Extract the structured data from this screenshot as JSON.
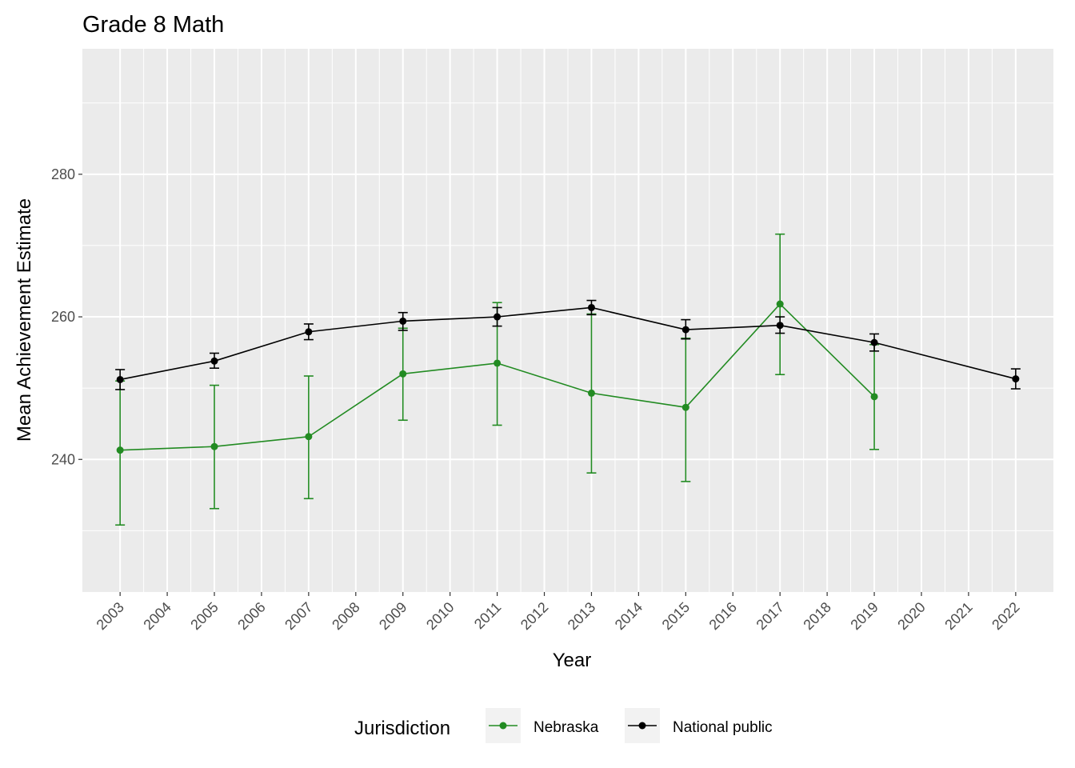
{
  "chart_data": {
    "type": "line",
    "title": "Grade 8 Math",
    "xlabel": "Year",
    "ylabel": "Mean Achievement Estimate",
    "x_categories": [
      "2003",
      "2004",
      "2005",
      "2006",
      "2007",
      "2008",
      "2009",
      "2010",
      "2011",
      "2012",
      "2013",
      "2014",
      "2015",
      "2016",
      "2017",
      "2018",
      "2019",
      "2020",
      "2021",
      "2022"
    ],
    "y_ticks": [
      240,
      260,
      280
    ],
    "ylim": [
      221.4,
      297.6
    ],
    "grid": true,
    "error_bars": true,
    "legend": {
      "title": "Jurisdiction",
      "position": "bottom"
    },
    "series": [
      {
        "name": "Nebraska",
        "color": "#228B22",
        "points": [
          {
            "x": "2003",
            "y": 241.3,
            "lo": 230.8,
            "hi": 251.0
          },
          {
            "x": "2005",
            "y": 241.8,
            "lo": 233.1,
            "hi": 250.4
          },
          {
            "x": "2007",
            "y": 243.2,
            "lo": 234.5,
            "hi": 251.7
          },
          {
            "x": "2009",
            "y": 252.0,
            "lo": 245.5,
            "hi": 258.4
          },
          {
            "x": "2011",
            "y": 253.5,
            "lo": 244.8,
            "hi": 262.0
          },
          {
            "x": "2013",
            "y": 249.3,
            "lo": 238.1,
            "hi": 260.4
          },
          {
            "x": "2015",
            "y": 247.3,
            "lo": 236.9,
            "hi": 257.0
          },
          {
            "x": "2017",
            "y": 261.8,
            "lo": 251.9,
            "hi": 271.6
          },
          {
            "x": "2019",
            "y": 248.8,
            "lo": 241.4,
            "hi": 256.1
          }
        ]
      },
      {
        "name": "National public",
        "color": "#000000",
        "points": [
          {
            "x": "2003",
            "y": 251.2,
            "lo": 249.8,
            "hi": 252.6
          },
          {
            "x": "2005",
            "y": 253.8,
            "lo": 252.8,
            "hi": 254.9
          },
          {
            "x": "2007",
            "y": 257.9,
            "lo": 256.8,
            "hi": 259.0
          },
          {
            "x": "2009",
            "y": 259.4,
            "lo": 258.1,
            "hi": 260.6
          },
          {
            "x": "2011",
            "y": 260.0,
            "lo": 258.7,
            "hi": 261.3
          },
          {
            "x": "2013",
            "y": 261.3,
            "lo": 260.3,
            "hi": 262.3
          },
          {
            "x": "2015",
            "y": 258.2,
            "lo": 256.9,
            "hi": 259.6
          },
          {
            "x": "2017",
            "y": 258.8,
            "lo": 257.7,
            "hi": 260.0
          },
          {
            "x": "2019",
            "y": 256.4,
            "lo": 255.2,
            "hi": 257.6
          },
          {
            "x": "2022",
            "y": 251.3,
            "lo": 249.9,
            "hi": 252.7
          }
        ]
      }
    ]
  }
}
